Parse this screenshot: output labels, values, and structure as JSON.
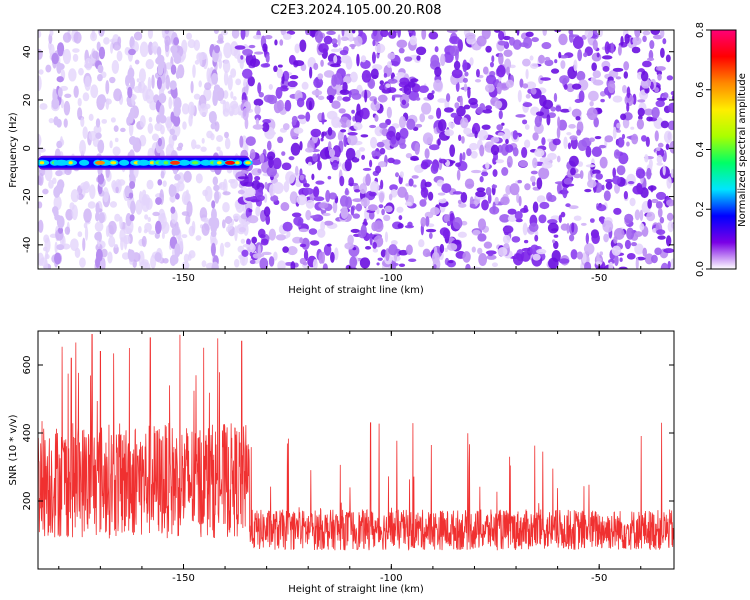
{
  "title": "C2E3.2024.105.00.20.R08",
  "chart_data": [
    {
      "type": "heatmap",
      "xlabel": "Height of straight line (km)",
      "ylabel": "Frequency (Hz)",
      "xlim": [
        -185,
        -32
      ],
      "ylim": [
        -50,
        49
      ],
      "x_ticks": [
        -150,
        -100,
        -50
      ],
      "y_ticks": [
        -40,
        -20,
        0,
        20,
        40
      ],
      "signal_band": {
        "frequency_center_hz": -6,
        "x_start_km": -185,
        "x_end_km": -134
      },
      "colorbar": {
        "label": "Normalized spectral amplitude",
        "range": [
          0.0,
          0.8
        ],
        "ticks": [
          0.0,
          0.2,
          0.4,
          0.6,
          0.8
        ],
        "colors": [
          "#ffffff",
          "#7a00e6",
          "#0000ff",
          "#00e5ff",
          "#00ff66",
          "#aaff00",
          "#ffee00",
          "#ff8800",
          "#ff0000",
          "#ff0077"
        ]
      }
    },
    {
      "type": "line",
      "xlabel": "Height of straight line (km)",
      "ylabel": "SNR (10 * v/v)",
      "xlim": [
        -185,
        -32
      ],
      "ylim": [
        0,
        700
      ],
      "x_ticks": [
        -150,
        -100,
        -50
      ],
      "y_ticks": [
        200,
        400,
        600
      ],
      "line_color": "#f03030",
      "segments": [
        {
          "x_range": [
            -185,
            -134
          ],
          "mean": 260,
          "spread": 170,
          "max": 690
        },
        {
          "x_range": [
            -134,
            -32
          ],
          "mean": 115,
          "spread": 60,
          "max": 430
        }
      ],
      "peaks": [
        {
          "x": -177,
          "y": 620
        },
        {
          "x": -172,
          "y": 690
        },
        {
          "x": -170,
          "y": 640
        },
        {
          "x": -163,
          "y": 650
        },
        {
          "x": -158,
          "y": 680
        },
        {
          "x": -147,
          "y": 570
        },
        {
          "x": -136,
          "y": 670
        },
        {
          "x": -105,
          "y": 430
        },
        {
          "x": -35,
          "y": 430
        }
      ]
    }
  ]
}
